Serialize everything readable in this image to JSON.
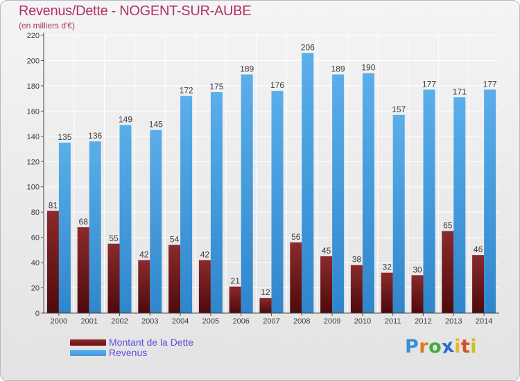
{
  "title": "Revenus/Dette - NOGENT-SUR-AUBE",
  "subtitle": "(en milliers d'€)",
  "brand": {
    "letters": [
      "P",
      "r",
      "o",
      "x",
      "i",
      "t",
      "i"
    ],
    "colors": [
      "#3d8fd6",
      "#e07a1f",
      "#3fae3f",
      "#2a6fcc",
      "#e8b91a",
      "#d64f2b",
      "#c6c21f"
    ]
  },
  "colors": {
    "dette": "#6b0f12",
    "dette_light": "#8f2a2c",
    "revenus": "#3e98de",
    "revenus_light": "#5eb0ec",
    "label": "#3a3a3a",
    "grid": "#ffffff"
  },
  "legend": {
    "dette_label": "Montant de la Dette",
    "revenus_label": "Revenus"
  },
  "chart_data": {
    "type": "bar",
    "categories": [
      "2000",
      "2001",
      "2002",
      "2003",
      "2004",
      "2005",
      "2006",
      "2007",
      "2008",
      "2009",
      "2010",
      "2011",
      "2012",
      "2013",
      "2014"
    ],
    "series": [
      {
        "name": "Montant de la Dette",
        "values": [
          81,
          68,
          55,
          42,
          54,
          42,
          21,
          12,
          56,
          45,
          38,
          32,
          30,
          65,
          46
        ]
      },
      {
        "name": "Revenus",
        "values": [
          135,
          136,
          149,
          145,
          172,
          175,
          189,
          176,
          206,
          189,
          190,
          157,
          177,
          171,
          177
        ]
      }
    ],
    "yticks": [
      0,
      20,
      40,
      60,
      80,
      100,
      120,
      140,
      160,
      180,
      200,
      220
    ],
    "ylim": [
      0,
      220
    ],
    "grid": true,
    "legend_position": "bottom-left"
  }
}
